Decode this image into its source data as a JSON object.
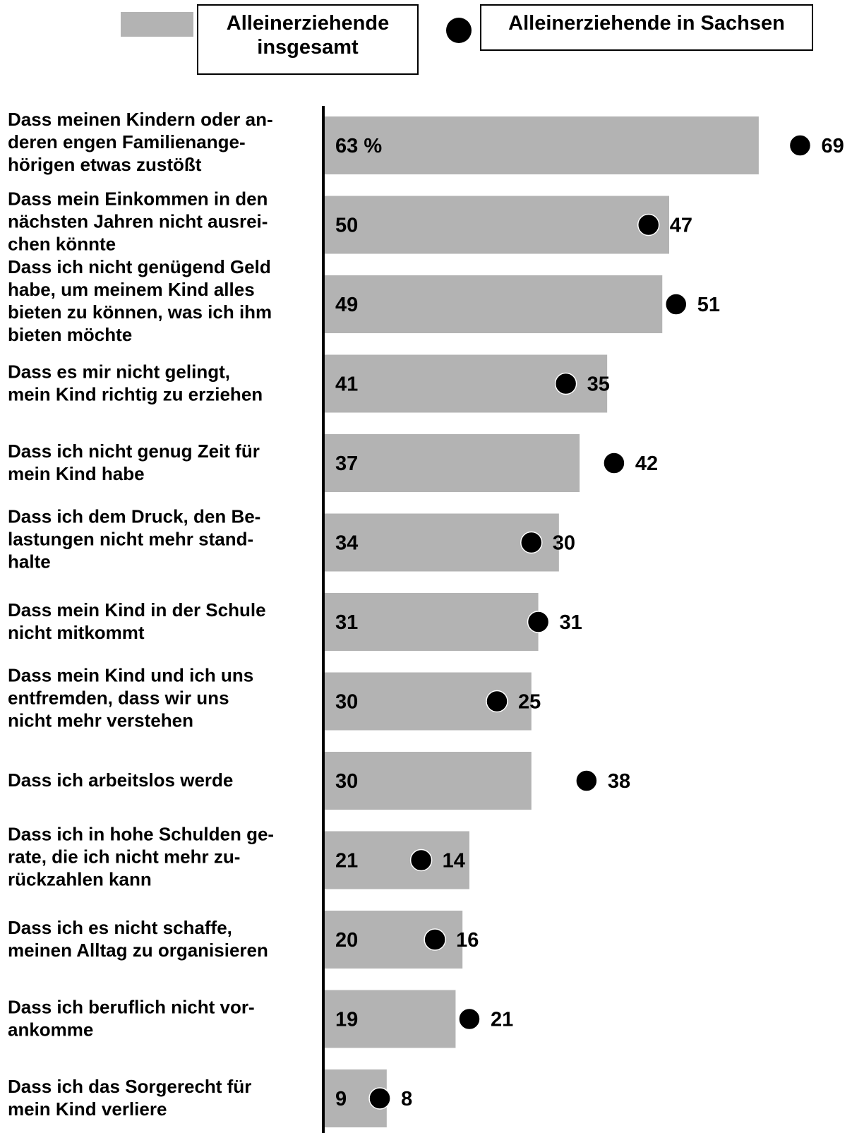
{
  "legend": {
    "series_all_label": "Alleinerziehende insgesamt",
    "series_sax_label": "Alleinerziehende in Sachsen",
    "bar_color": "#b3b3b3",
    "dot_color": "#000000"
  },
  "chart_data": {
    "type": "bar",
    "orientation": "horizontal",
    "unit": "%",
    "first_value_suffix": " %",
    "categories": [
      [
        "Dass meinen Kindern oder an-",
        "deren engen Familienange-",
        "hörigen etwas zustößt"
      ],
      [
        "Dass mein Einkommen in den",
        "nächsten Jahren nicht ausrei-",
        "chen könnte"
      ],
      [
        "Dass ich nicht genügend Geld",
        "habe, um meinem Kind alles",
        "bieten zu können, was ich ihm",
        "bieten möchte"
      ],
      [
        "Dass es mir nicht gelingt,",
        "mein Kind richtig zu erziehen"
      ],
      [
        "Dass ich nicht genug Zeit für",
        "mein Kind habe"
      ],
      [
        "Dass ich dem Druck, den Be-",
        "lastungen nicht mehr stand-",
        "halte"
      ],
      [
        "Dass mein Kind in der Schule",
        "nicht mitkommt"
      ],
      [
        "Dass mein Kind und ich uns",
        "entfremden, dass wir uns",
        "nicht mehr verstehen"
      ],
      [
        "Dass ich arbeitslos werde"
      ],
      [
        "Dass ich in hohe Schulden ge-",
        "rate, die ich nicht mehr zu-",
        "rückzahlen kann"
      ],
      [
        "Dass ich es nicht schaffe,",
        "meinen Alltag zu organisieren"
      ],
      [
        "Dass ich beruflich nicht vor-",
        "ankomme"
      ],
      [
        "Dass ich das Sorgerecht für",
        "mein Kind verliere"
      ]
    ],
    "series": [
      {
        "name": "Alleinerziehende insgesamt",
        "marker": "bar",
        "values": [
          63,
          50,
          49,
          41,
          37,
          34,
          31,
          30,
          30,
          21,
          20,
          19,
          9
        ]
      },
      {
        "name": "Alleinerziehende in Sachsen",
        "marker": "dot",
        "values": [
          69,
          47,
          51,
          35,
          42,
          30,
          31,
          25,
          38,
          14,
          16,
          21,
          8
        ]
      }
    ],
    "xlim": [
      0,
      75
    ],
    "grid": false
  }
}
